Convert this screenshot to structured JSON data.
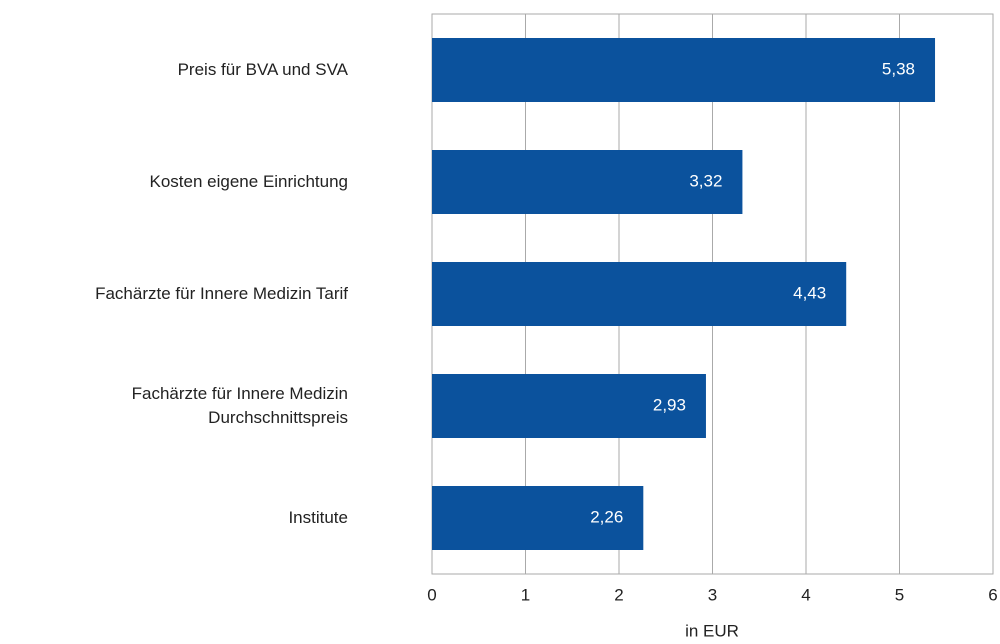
{
  "chart_data": {
    "type": "barh",
    "categories": [
      "Preis für BVA und SVA",
      "Kosten eigene Einrichtung",
      "Fachärzte für Innere Medizin Tarif",
      "Fachärzte für Innere Medizin\nDurchschnittspreis",
      "Institute"
    ],
    "values": [
      5.38,
      3.32,
      4.43,
      2.93,
      2.26
    ],
    "value_labels": [
      "5,38",
      "3,32",
      "4,43",
      "2,93",
      "2,26"
    ],
    "color": "#0b529d",
    "xlim": [
      0,
      6
    ],
    "xticks": [
      0,
      1,
      2,
      3,
      4,
      5,
      6
    ],
    "xlabel": "in EUR",
    "grid": true
  }
}
